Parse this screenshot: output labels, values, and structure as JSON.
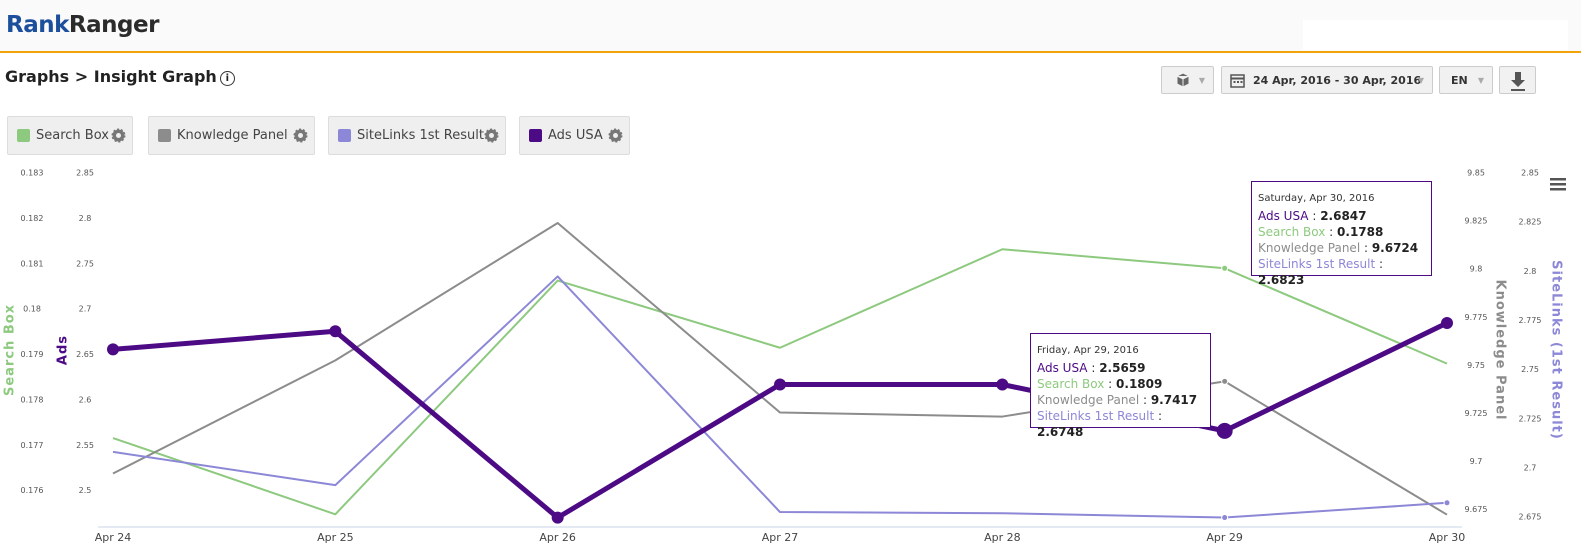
{
  "header": {
    "logo_first": "Rank",
    "logo_second": "Ranger"
  },
  "breadcrumb": "Graphs > Insight Graph",
  "toolbar": {
    "date_range": "24 Apr, 2016 - 30 Apr, 2016",
    "language": "EN"
  },
  "chart_data": {
    "type": "line",
    "categories": [
      "Apr 24",
      "Apr 25",
      "Apr 26",
      "Apr 27",
      "Apr 28",
      "Apr 29",
      "Apr 30"
    ],
    "yaxes": [
      {
        "title": "Search Box",
        "color": "#8dc97e",
        "lim": [
          0.1752,
          0.183
        ],
        "ticks": [
          0.176,
          0.177,
          0.178,
          0.179,
          0.18,
          0.181,
          0.182,
          0.183
        ]
      },
      {
        "title": "Ads",
        "color": "#4c0a85",
        "lim": [
          2.46,
          2.85
        ],
        "ticks": [
          2.5,
          2.55,
          2.6,
          2.65,
          2.7,
          2.75,
          2.8,
          2.85
        ]
      },
      {
        "title": "Knowledge Panel",
        "color": "#8c8c8c",
        "lim": [
          9.666,
          9.85
        ],
        "ticks": [
          9.675,
          9.7,
          9.725,
          9.75,
          9.775,
          9.8,
          9.825,
          9.85
        ]
      },
      {
        "title": "SiteLinks (1st Result)",
        "color": "#8c87d6",
        "lim": [
          2.67,
          2.85
        ],
        "ticks": [
          2.675,
          2.7,
          2.725,
          2.75,
          2.775,
          2.8,
          2.825,
          2.85
        ]
      }
    ],
    "series": [
      {
        "name": "Search Box",
        "color": "#8dc97e",
        "axis": 0,
        "values": [
          0.17716,
          0.17548,
          0.18063,
          0.17915,
          0.18132,
          0.1809,
          0.1788
        ]
      },
      {
        "name": "Knowledge Panel",
        "color": "#8c8c8c",
        "axis": 2,
        "values": [
          9.6938,
          9.7526,
          9.824,
          9.7255,
          9.7234,
          9.7417,
          9.6724
        ]
      },
      {
        "name": "SiteLinks 1st Result",
        "color": "#8c87d6",
        "axis": 3,
        "values": [
          2.7082,
          2.6913,
          2.7974,
          2.6776,
          2.677,
          2.6748,
          2.6823
        ]
      },
      {
        "name": "Ads USA",
        "color": "#4c0a85",
        "axis": 1,
        "values": [
          2.6557,
          2.6756,
          2.4703,
          2.617,
          2.617,
          2.5659,
          2.6847
        ]
      }
    ],
    "tooltips": [
      "Saturday, Apr 30, 2016",
      "Friday, Apr 29, 2016"
    ]
  }
}
